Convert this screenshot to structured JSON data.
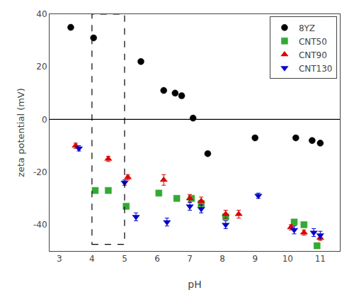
{
  "chart_data": {
    "type": "scatter",
    "xlabel": "pH",
    "ylabel": "zeta potential (mV)",
    "xlim": [
      2.7,
      11.6
    ],
    "ylim": [
      -50,
      40
    ],
    "xticks": [
      3,
      4,
      5,
      6,
      7,
      8,
      9,
      10,
      11
    ],
    "yticks": [
      -40,
      -20,
      0,
      20,
      40
    ],
    "grid": false,
    "legend": "upper right",
    "reference_line_y": 0,
    "box": {
      "x0": 4.0,
      "x1": 5.0,
      "y0": -47.5,
      "y1": 40,
      "line_style": "dashed"
    },
    "series": [
      {
        "name": "8YZ",
        "color": "#000000",
        "marker": "circle",
        "x": [
          3.35,
          4.05,
          5.5,
          6.2,
          6.55,
          6.75,
          7.1,
          7.55,
          9.0,
          10.25,
          10.75,
          11.0
        ],
        "values": [
          35,
          31,
          22,
          11,
          10,
          9,
          0.5,
          -13,
          -7,
          -7,
          -8,
          -9
        ]
      },
      {
        "name": "CNT50",
        "color": "#33aa33",
        "marker": "square",
        "x": [
          4.1,
          4.5,
          5.05,
          6.05,
          6.6,
          7.05,
          7.35,
          8.1,
          10.2,
          10.5,
          10.9
        ],
        "values": [
          -27,
          -27,
          -33,
          -28,
          -30,
          -30,
          -32,
          -37,
          -39,
          -40,
          -48
        ]
      },
      {
        "name": "CNT90",
        "color": "#dd0000",
        "marker": "triangle-up",
        "x": [
          3.5,
          4.5,
          5.1,
          6.2,
          7.0,
          7.35,
          8.1,
          8.5,
          10.1,
          10.5,
          11.0
        ],
        "values": [
          -10,
          -15,
          -22,
          -23,
          -30,
          -31,
          -36,
          -36,
          -41,
          -43,
          -45
        ],
        "yerr": [
          1.0,
          1.0,
          1.0,
          2.0,
          1.5,
          1.5,
          1.5,
          1.5,
          1.0,
          1.0,
          1.0
        ]
      },
      {
        "name": "CNT130",
        "color": "#0000cc",
        "marker": "triangle-down",
        "x": [
          3.6,
          5.0,
          5.35,
          6.3,
          7.0,
          7.35,
          8.1,
          9.1,
          10.2,
          10.8,
          11.0
        ],
        "values": [
          -11,
          -24,
          -37,
          -39,
          -33,
          -34,
          -40,
          -29,
          -42,
          -43,
          -44
        ],
        "yerr": [
          1.0,
          1.0,
          1.5,
          1.5,
          1.5,
          1.5,
          1.5,
          1.0,
          1.5,
          1.5,
          1.5
        ]
      }
    ]
  }
}
